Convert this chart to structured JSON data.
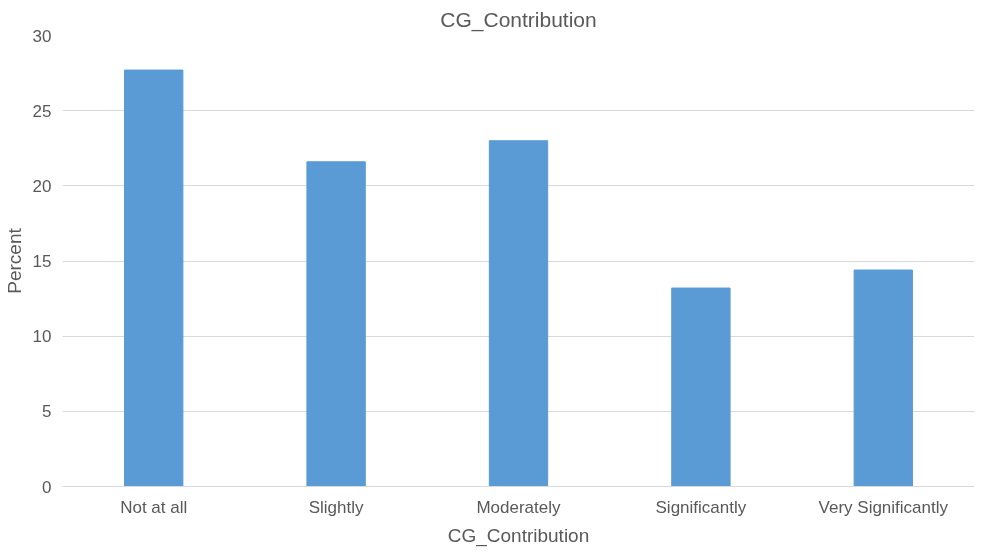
{
  "chart_data": {
    "type": "bar",
    "title": "CG_Contribution",
    "xlabel": "CG_Contribution",
    "ylabel": "Percent",
    "categories": [
      "Not at all",
      "Slightly",
      "Moderately",
      "Significantly",
      "Very Significantly"
    ],
    "values": [
      27.7,
      21.6,
      23.0,
      13.2,
      14.4
    ],
    "color": "#5b9bd5",
    "ylim": [
      0,
      30
    ],
    "yticks": [
      0,
      5,
      10,
      15,
      20,
      25,
      30
    ],
    "grid": "y"
  }
}
